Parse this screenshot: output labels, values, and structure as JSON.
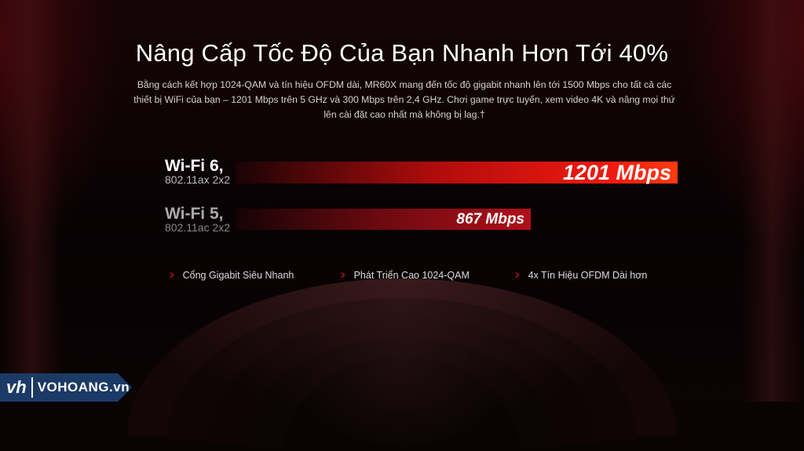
{
  "title": "Nâng Cấp Tốc Độ Của Bạn Nhanh Hơn Tới 40%",
  "description": "Bằng cách kết hợp 1024-QAM và tín hiệu OFDM dài, MR60X mang đến tốc độ gigabit nhanh lên tới 1500 Mbps cho tất cả các thiết bị WiFi của bạn – 1201 Mbps trên 5 GHz và 300 Mbps trên 2,4 GHz. Chơi game trực tuyến, xem video 4K và nâng mọi thứ lên cài đặt cao nhất mà không bị lag.†",
  "comparison": [
    {
      "name": "Wi-Fi 6,",
      "standard": "802.11ax 2x2",
      "value_label": "1201 Mbps",
      "value": 1201,
      "color": "#f01a10"
    },
    {
      "name": "Wi-Fi 5,",
      "standard": "802.11ac 2x2",
      "value_label": "867 Mbps",
      "value": 867,
      "color": "#b0101a"
    }
  ],
  "features": [
    "Cổng Gigabit Siêu Nhanh",
    "Phát Triển Cao 1024-QAM",
    "4x Tín Hiệu OFDM Dài hơn"
  ],
  "feature_icon": "chevron-right-icon",
  "accent": "#e0141c",
  "watermark": {
    "mark": "vh",
    "name": "VOHOANG.vn"
  }
}
